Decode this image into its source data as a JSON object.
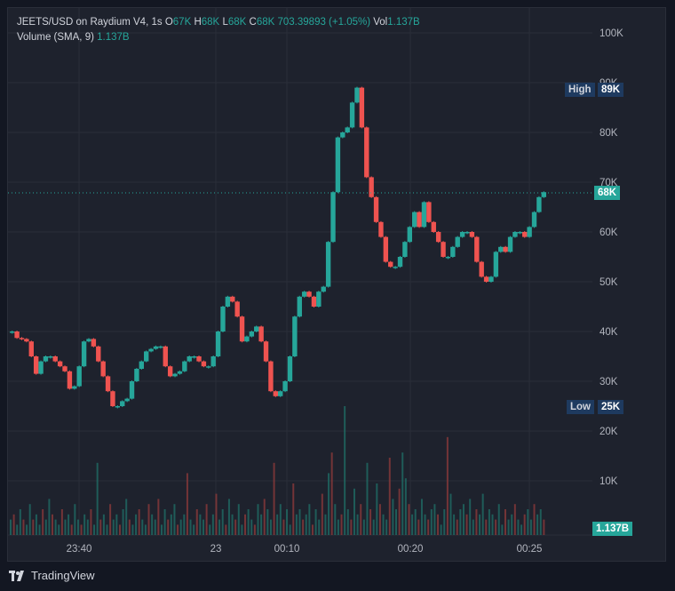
{
  "legend": {
    "pair": "JEETS/USD on Raydium V4, 1s",
    "o_label": "O",
    "o_value": "67K",
    "h_label": "H",
    "h_value": "68K",
    "l_label": "L",
    "l_value": "68K",
    "c_label": "C",
    "c_value": "68K",
    "change": "703.39893 (+1.05%)",
    "vol_label": "Vol",
    "vol_value": "1.137B",
    "volume_label": "Volume (SMA, 9)",
    "volume_value": "1.137B"
  },
  "badges": {
    "high_label": "High",
    "high_value": "89K",
    "low_label": "Low",
    "low_value": "25K",
    "last_price": "68K",
    "last_volume": "1.137B"
  },
  "brand": "TradingView",
  "colors": {
    "up": "#26a69a",
    "down": "#ef5350",
    "background": "#1e222d",
    "grid": "#2a2e39",
    "text": "#b2b5be",
    "badge_dark": "#1e3a5f"
  },
  "chart_data": {
    "type": "candlestick",
    "y_axis": {
      "ticks": [
        "100K",
        "90K",
        "80K",
        "70K",
        "60K",
        "50K",
        "40K",
        "30K",
        "20K",
        "10K"
      ],
      "ylim": [
        20000,
        100000
      ]
    },
    "x_axis": {
      "ticks": [
        "23:40",
        "23",
        "00:10",
        "00:20",
        "00:25"
      ]
    },
    "high": 89000,
    "low": 25000,
    "last": 68000,
    "close_path": [
      40,
      38.7,
      38.5,
      38,
      35,
      31.5,
      34,
      35,
      35,
      34,
      33,
      32,
      28.5,
      29,
      33,
      38,
      38.5,
      37,
      34,
      31,
      28,
      25,
      25,
      26,
      26.5,
      30,
      32.5,
      34,
      36,
      36.5,
      37,
      37,
      33,
      31,
      31.5,
      32,
      34,
      35,
      35,
      34,
      33,
      33,
      35,
      40,
      45,
      47,
      46,
      43,
      38,
      39,
      40,
      41,
      38,
      34,
      28,
      27,
      28,
      30,
      35,
      43,
      47,
      48,
      47,
      45,
      48,
      49,
      58,
      68,
      79,
      80,
      81,
      86,
      89,
      81,
      71,
      67,
      62,
      59,
      54,
      53,
      53,
      55,
      58,
      61,
      64,
      61,
      66,
      62,
      60,
      58,
      55,
      55,
      57,
      59,
      60,
      60,
      59,
      54,
      51,
      50,
      51,
      56,
      57,
      56,
      59,
      60,
      60,
      59,
      61,
      64,
      67,
      68
    ],
    "volume_bars": [
      3,
      4,
      2,
      5,
      3,
      2,
      6,
      3,
      4,
      2,
      5,
      3,
      7,
      4,
      3,
      2,
      5,
      3,
      4,
      2,
      6,
      3,
      2,
      4,
      3,
      5,
      2,
      14,
      3,
      4,
      2,
      6,
      3,
      4,
      2,
      5,
      7,
      3,
      2,
      4,
      5,
      3,
      2,
      6,
      4,
      3,
      7,
      2,
      5,
      3,
      4,
      6,
      2,
      3,
      4,
      12,
      3,
      2,
      5,
      4,
      3,
      6,
      2,
      4,
      8,
      3,
      5,
      2,
      7,
      4,
      3,
      6,
      2,
      4,
      5,
      3,
      2,
      6,
      4,
      7,
      5,
      3,
      14,
      4,
      6,
      3,
      5,
      2,
      10,
      4,
      5,
      3,
      4,
      6,
      2,
      5,
      3,
      8,
      4,
      12,
      16,
      6,
      3,
      4,
      25,
      5,
      3,
      9,
      4,
      6,
      3,
      14,
      5,
      3,
      10,
      6,
      4,
      3,
      15,
      7,
      5,
      9,
      16,
      11,
      6,
      4,
      5,
      3,
      7,
      4,
      3,
      5,
      6,
      4,
      2,
      5,
      19,
      8,
      4,
      3,
      5,
      6,
      4,
      7,
      3,
      5,
      4,
      8,
      3,
      5,
      4,
      3,
      6,
      2,
      5,
      3,
      4,
      6,
      3,
      2,
      4,
      5,
      3,
      6,
      4,
      5,
      3
    ]
  }
}
